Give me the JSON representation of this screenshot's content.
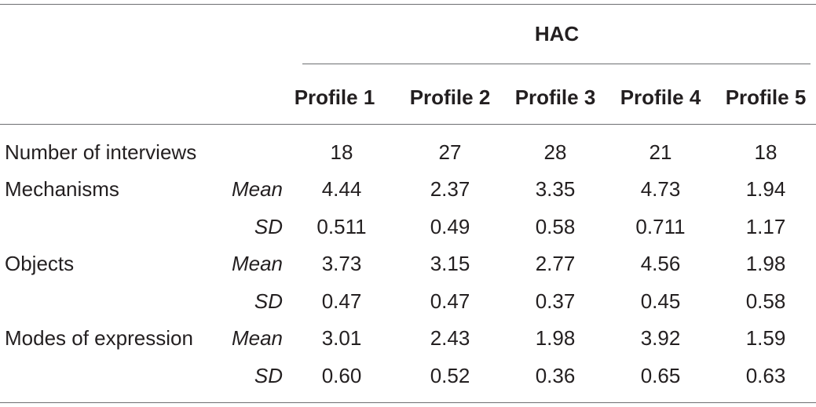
{
  "table": {
    "group_header": "HAC",
    "columns": [
      "Profile 1",
      "Profile 2",
      "Profile 3",
      "Profile 4",
      "Profile 5"
    ],
    "rows": [
      {
        "label": "Number of interviews",
        "stat": "",
        "values": [
          "18",
          "27",
          "28",
          "21",
          "18"
        ]
      },
      {
        "label": "Mechanisms",
        "stat": "Mean",
        "values": [
          "4.44",
          "2.37",
          "3.35",
          "4.73",
          "1.94"
        ]
      },
      {
        "label": "",
        "stat": "SD",
        "values": [
          "0.511",
          "0.49",
          "0.58",
          "0.711",
          "1.17"
        ]
      },
      {
        "label": "Objects",
        "stat": "Mean",
        "values": [
          "3.73",
          "3.15",
          "2.77",
          "4.56",
          "1.98"
        ]
      },
      {
        "label": "",
        "stat": "SD",
        "values": [
          "0.47",
          "0.47",
          "0.37",
          "0.45",
          "0.58"
        ]
      },
      {
        "label": "Modes of expression",
        "stat": "Mean",
        "values": [
          "3.01",
          "2.43",
          "1.98",
          "3.92",
          "1.59"
        ]
      },
      {
        "label": "",
        "stat": "SD",
        "values": [
          "0.60",
          "0.52",
          "0.36",
          "0.65",
          "0.63"
        ]
      }
    ]
  }
}
